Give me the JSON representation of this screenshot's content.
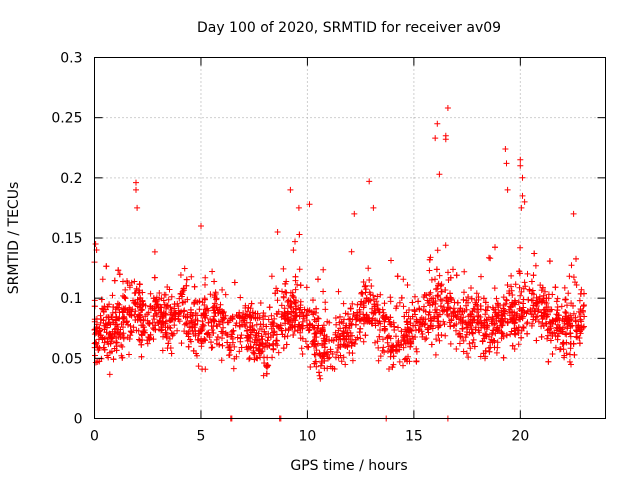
{
  "chart_data": {
    "type": "scatter",
    "title": "Day 100 of 2020, SRMTID for receiver av09",
    "xlabel": "GPS time / hours",
    "ylabel": "SRMTID / TECUs",
    "xlim": [
      0,
      24
    ],
    "ylim": [
      0,
      0.3
    ],
    "xticks": [
      0,
      5,
      10,
      15,
      20
    ],
    "yticks": [
      0,
      0.05,
      0.1,
      0.15,
      0.2,
      0.25,
      0.3
    ],
    "ytick_labels": [
      "0",
      "0.05",
      "0.1",
      "0.15",
      "0.2",
      "0.25",
      "0.3"
    ],
    "grid": true,
    "marker": "plus",
    "color": "#ff0000",
    "profile": [
      [
        0.0,
        0.075
      ],
      [
        0.5,
        0.07
      ],
      [
        1.0,
        0.078
      ],
      [
        1.5,
        0.085
      ],
      [
        2.0,
        0.092
      ],
      [
        2.5,
        0.08
      ],
      [
        3.0,
        0.085
      ],
      [
        3.5,
        0.08
      ],
      [
        4.0,
        0.09
      ],
      [
        4.5,
        0.08
      ],
      [
        5.0,
        0.075
      ],
      [
        5.5,
        0.085
      ],
      [
        6.0,
        0.08
      ],
      [
        6.5,
        0.07
      ],
      [
        7.0,
        0.075
      ],
      [
        7.5,
        0.065
      ],
      [
        8.0,
        0.06
      ],
      [
        8.5,
        0.08
      ],
      [
        9.0,
        0.09
      ],
      [
        9.5,
        0.085
      ],
      [
        10.0,
        0.075
      ],
      [
        10.5,
        0.065
      ],
      [
        11.0,
        0.06
      ],
      [
        11.5,
        0.065
      ],
      [
        12.0,
        0.075
      ],
      [
        12.5,
        0.085
      ],
      [
        13.0,
        0.09
      ],
      [
        13.5,
        0.075
      ],
      [
        14.0,
        0.065
      ],
      [
        14.5,
        0.07
      ],
      [
        15.0,
        0.075
      ],
      [
        15.5,
        0.085
      ],
      [
        16.0,
        0.09
      ],
      [
        16.5,
        0.095
      ],
      [
        17.0,
        0.085
      ],
      [
        17.5,
        0.08
      ],
      [
        18.0,
        0.085
      ],
      [
        18.5,
        0.075
      ],
      [
        19.0,
        0.08
      ],
      [
        19.5,
        0.085
      ],
      [
        20.0,
        0.09
      ],
      [
        20.5,
        0.095
      ],
      [
        21.0,
        0.09
      ],
      [
        21.5,
        0.08
      ],
      [
        22.0,
        0.075
      ],
      [
        22.5,
        0.08
      ],
      [
        23.0,
        0.082
      ]
    ],
    "n_points": 2600,
    "x_range": [
      0,
      23.0
    ],
    "spikes": [
      {
        "x": 1.95,
        "y": 0.196
      },
      {
        "x": 1.95,
        "y": 0.19
      },
      {
        "x": 2.0,
        "y": 0.175
      },
      {
        "x": 5.0,
        "y": 0.16
      },
      {
        "x": 9.2,
        "y": 0.19
      },
      {
        "x": 9.6,
        "y": 0.175
      },
      {
        "x": 10.1,
        "y": 0.178
      },
      {
        "x": 12.9,
        "y": 0.197
      },
      {
        "x": 13.1,
        "y": 0.175
      },
      {
        "x": 16.0,
        "y": 0.233
      },
      {
        "x": 16.1,
        "y": 0.245
      },
      {
        "x": 16.2,
        "y": 0.203
      },
      {
        "x": 16.5,
        "y": 0.235
      },
      {
        "x": 16.6,
        "y": 0.258
      },
      {
        "x": 16.5,
        "y": 0.232
      },
      {
        "x": 19.3,
        "y": 0.224
      },
      {
        "x": 19.35,
        "y": 0.212
      },
      {
        "x": 19.4,
        "y": 0.19
      },
      {
        "x": 20.0,
        "y": 0.215
      },
      {
        "x": 20.0,
        "y": 0.21
      },
      {
        "x": 20.1,
        "y": 0.2
      },
      {
        "x": 20.1,
        "y": 0.185
      },
      {
        "x": 20.2,
        "y": 0.18
      },
      {
        "x": 20.05,
        "y": 0.175
      },
      {
        "x": 0.05,
        "y": 0.145
      },
      {
        "x": 0.1,
        "y": 0.14
      },
      {
        "x": 0.0,
        "y": 0.13
      },
      {
        "x": 8.6,
        "y": 0.155
      },
      {
        "x": 22.5,
        "y": 0.17
      },
      {
        "x": 12.2,
        "y": 0.17
      }
    ],
    "zero_points": [
      6.4,
      6.45,
      8.7,
      8.75,
      13.7,
      16.6
    ]
  }
}
